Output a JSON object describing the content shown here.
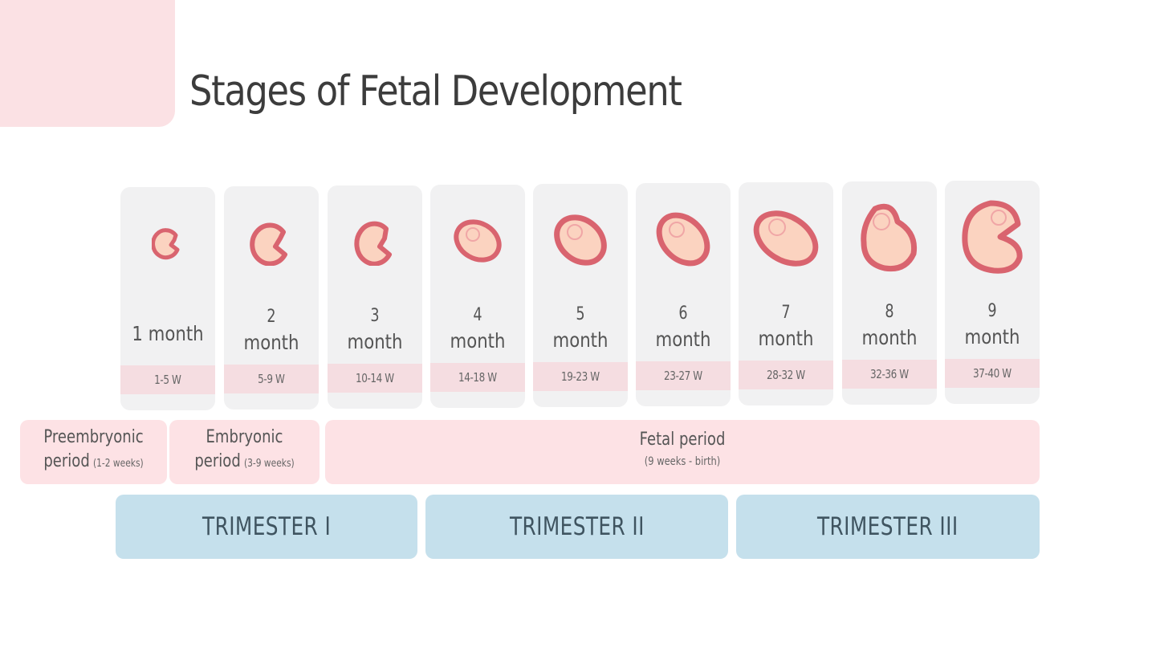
{
  "title": "Stages of Fetal Development",
  "colors": {
    "accent_pink": "#fbe1e4",
    "card_bg": "#f1f1f2",
    "week_strip": "#f5dde1",
    "trimester_blue": "#c5e0ec",
    "embryo_outline": "#d9646f",
    "embryo_fill": "#fbd3c0"
  },
  "months": [
    {
      "number": "",
      "label": "1 month",
      "weeks": "1-5 W",
      "icon": "embryo-icon"
    },
    {
      "number": "2",
      "label": "month",
      "weeks": "5-9 W",
      "icon": "embryo-icon"
    },
    {
      "number": "3",
      "label": "month",
      "weeks": "10-14 W",
      "icon": "embryo-icon"
    },
    {
      "number": "4",
      "label": "month",
      "weeks": "14-18 W",
      "icon": "fetus-icon"
    },
    {
      "number": "5",
      "label": "month",
      "weeks": "19-23 W",
      "icon": "fetus-icon"
    },
    {
      "number": "6",
      "label": "month",
      "weeks": "23-27 W",
      "icon": "fetus-icon"
    },
    {
      "number": "7",
      "label": "month",
      "weeks": "28-32 W",
      "icon": "fetus-icon"
    },
    {
      "number": "8",
      "label": "month",
      "weeks": "32-36 W",
      "icon": "fetus-icon"
    },
    {
      "number": "9",
      "label": "month",
      "weeks": "37-40 W",
      "icon": "fetus-icon"
    }
  ],
  "periods": {
    "preembryonic": {
      "line1": "Preembryonic",
      "line2": "period",
      "range": "(1-2 weeks)"
    },
    "embryonic": {
      "line1": "Embryonic",
      "line2": "period",
      "range": "(3-9 weeks)"
    },
    "fetal": {
      "line1": "Fetal period",
      "range": "(9 weeks - birth)"
    }
  },
  "trimesters": [
    "TRIMESTER I",
    "TRIMESTER II",
    "TRIMESTER III"
  ]
}
